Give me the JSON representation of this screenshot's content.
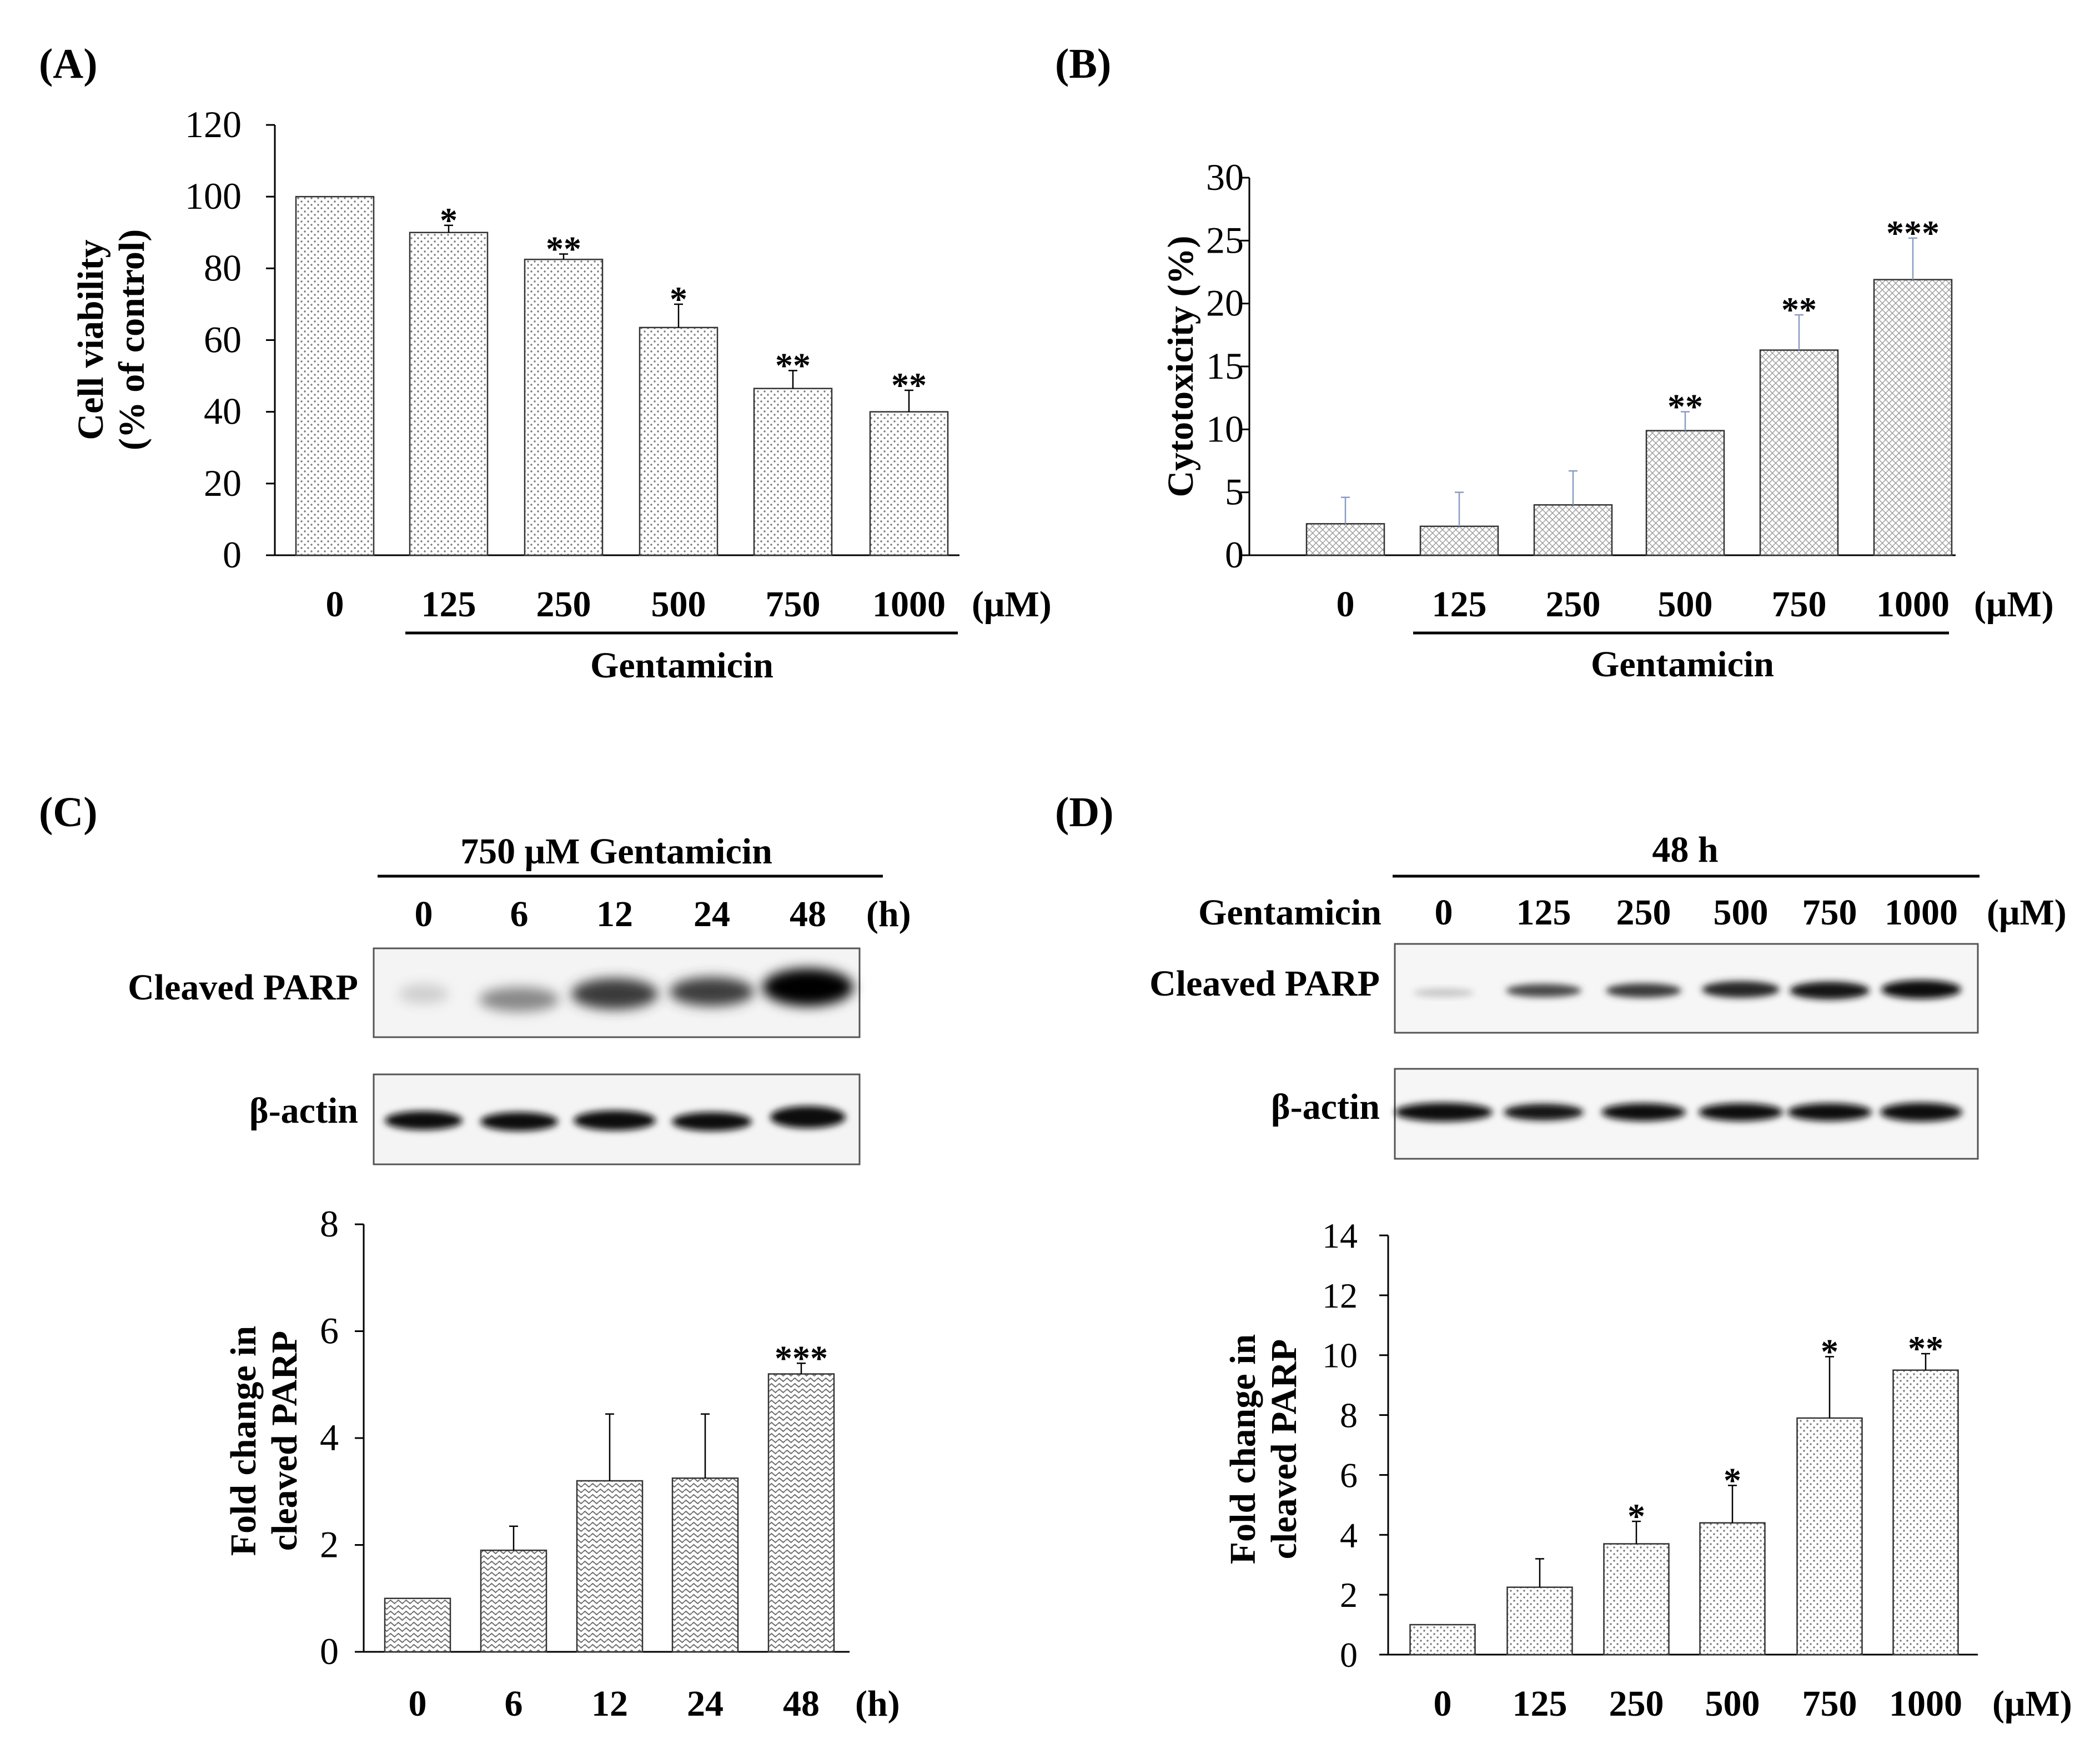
{
  "panels": {
    "A": {
      "label": "(A)",
      "unit": "(μM)",
      "group_label": "Gentamicin"
    },
    "B": {
      "label": "(B)",
      "unit": "(μM)",
      "group_label": "Gentamicin"
    },
    "C": {
      "label": "(C)",
      "blot_title": "750 μM Gentamicin",
      "lane_labels": [
        "0",
        "6",
        "12",
        "24",
        "48"
      ],
      "lane_unit": "(h)",
      "row_labels": [
        "Cleaved PARP",
        "β-actin"
      ]
    },
    "D": {
      "label": "(D)",
      "blot_title": "48 h",
      "treatment_label": "Gentamicin",
      "lane_labels": [
        "0",
        "125",
        "250",
        "500",
        "750",
        "1000"
      ],
      "lane_unit": "(μM)",
      "row_labels": [
        "Cleaved PARP",
        "β-actin"
      ]
    }
  },
  "chart_data": [
    {
      "id": "A",
      "type": "bar",
      "categories": [
        "0",
        "125",
        "250",
        "500",
        "750",
        "1000"
      ],
      "values": [
        100,
        90,
        82.5,
        63.5,
        46.5,
        40
      ],
      "errors": [
        0,
        2,
        1.5,
        6.5,
        5,
        6
      ],
      "significance": [
        "",
        "*",
        "**",
        "*",
        "**",
        "**"
      ],
      "ylabel": [
        "Cell viability",
        "(% of control)"
      ],
      "ylim": [
        0,
        120
      ],
      "yticks": [
        0,
        20,
        40,
        60,
        80,
        100,
        120
      ],
      "xunit": "(μM)"
    },
    {
      "id": "B",
      "type": "bar",
      "categories": [
        "0",
        "125",
        "250",
        "500",
        "750",
        "1000"
      ],
      "values": [
        2.5,
        2.3,
        4.0,
        9.9,
        16.3,
        21.9
      ],
      "errors": [
        2.1,
        2.7,
        2.7,
        1.5,
        2.8,
        3.3
      ],
      "significance": [
        "",
        "",
        "",
        "**",
        "**",
        "***"
      ],
      "ylabel": [
        "Cytotoxicity (%)"
      ],
      "ylim": [
        0,
        30
      ],
      "yticks": [
        0,
        5,
        10,
        15,
        20,
        25,
        30
      ],
      "xunit": "(μM)"
    },
    {
      "id": "C",
      "type": "bar",
      "categories": [
        "0",
        "6",
        "12",
        "24",
        "48"
      ],
      "values": [
        1.0,
        1.9,
        3.2,
        3.25,
        5.2
      ],
      "errors": [
        0,
        0.45,
        1.25,
        1.2,
        0.2
      ],
      "significance": [
        "",
        "",
        "",
        "",
        "***"
      ],
      "ylabel": [
        "Fold change in",
        "cleaved PARP"
      ],
      "ylim": [
        0,
        8
      ],
      "yticks": [
        0,
        2,
        4,
        6,
        8
      ],
      "xunit": "(h)"
    },
    {
      "id": "D",
      "type": "bar",
      "categories": [
        "0",
        "125",
        "250",
        "500",
        "750",
        "1000"
      ],
      "values": [
        1.0,
        2.25,
        3.7,
        4.4,
        7.9,
        9.5
      ],
      "errors": [
        0,
        0.95,
        0.75,
        1.25,
        2.05,
        0.55
      ],
      "significance": [
        "",
        "",
        "*",
        "*",
        "*",
        "**"
      ],
      "ylabel": [
        "Fold change in",
        "cleaved PARP"
      ],
      "ylim": [
        0,
        14
      ],
      "yticks": [
        0,
        2,
        4,
        6,
        8,
        10,
        12,
        14
      ],
      "xunit": "(μM)"
    }
  ]
}
